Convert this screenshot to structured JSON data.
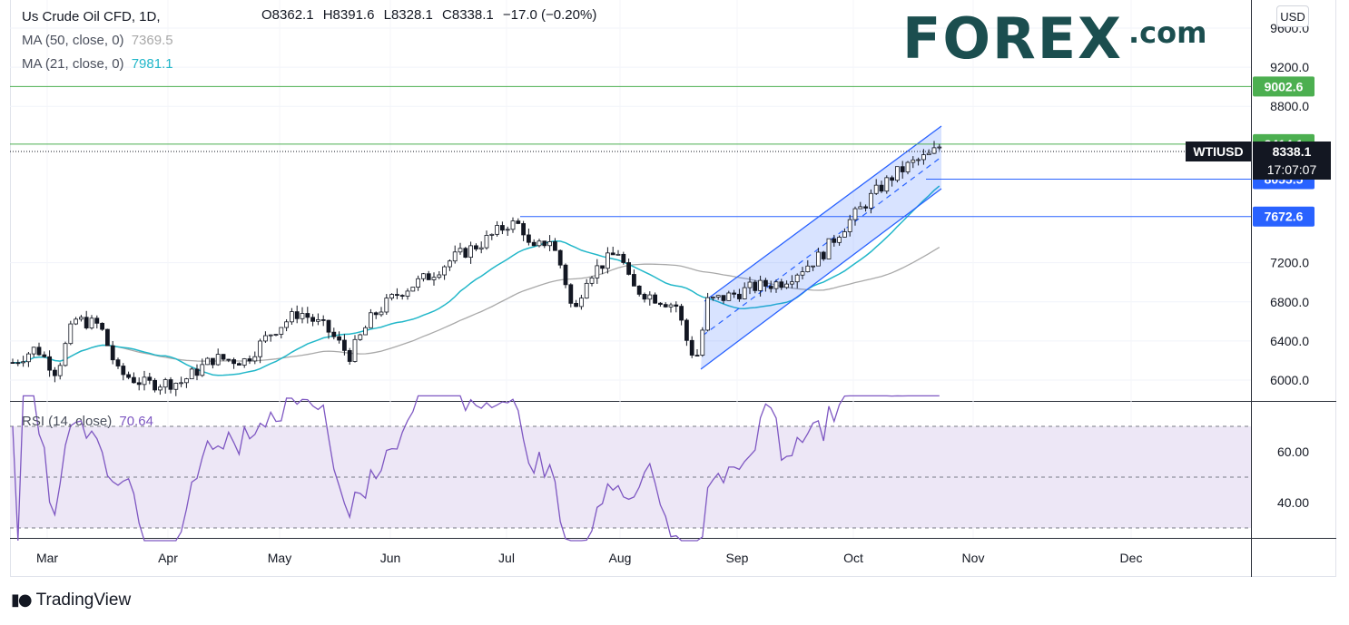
{
  "header": {
    "symbol_line": "Us Crude Oil CFD, 1D,",
    "ohlc": {
      "open": "O8362.1",
      "high": "H8391.6",
      "low": "L8328.1",
      "close": "C8338.1",
      "change": "−17.0 (−0.20%)"
    },
    "ma50": {
      "label": "MA (50, close, 0)",
      "value": "7369.5",
      "color": "#a9a9a9"
    },
    "ma21": {
      "label": "MA (21, close, 0)",
      "value": "7981.1",
      "color": "#22b7c9"
    },
    "currency_button": "USD"
  },
  "brand": {
    "logo_word": "FOREX",
    "logo_suffix": ".com",
    "platform": "TradingView"
  },
  "rsi": {
    "label": "RSI (14, close)",
    "value": "70.64"
  },
  "chart_data": {
    "type": "candlestick",
    "price_axis": {
      "ticks": [
        "9600.0",
        "9200.0",
        "8800.0",
        "7200.0",
        "6800.0",
        "6400.0",
        "6000.0"
      ],
      "ylim": [
        5770,
        9770
      ]
    },
    "rsi_axis": {
      "ticks": [
        "60.00",
        "40.00"
      ],
      "ylim": [
        20,
        85
      ],
      "bands": [
        30,
        50,
        70
      ]
    },
    "x_axis": {
      "ticks": [
        "Mar",
        "Apr",
        "May",
        "Jun",
        "Jul",
        "Aug",
        "Sep",
        "Oct",
        "Nov",
        "Dec"
      ]
    },
    "horizontal_levels": [
      {
        "value": 9002.6,
        "label": "9002.6",
        "color": "#4caf50",
        "style": "solid"
      },
      {
        "value": 8414.1,
        "label": "8414.1",
        "color": "#4caf50",
        "style": "solid"
      },
      {
        "value": 8055.5,
        "label": "8055.5",
        "color": "#2962ff",
        "style": "solid"
      },
      {
        "value": 7672.6,
        "label": "7672.6",
        "color": "#2962ff",
        "style": "solid"
      }
    ],
    "current_price": {
      "symbol": "WTIUSD",
      "value": "8338.1",
      "countdown": "17:07:07"
    },
    "channel_color": "#2962ff",
    "up_color": "#ffffff",
    "down_color": "#131722",
    "rsi_color": "#7e57c2",
    "rsi_fill": "#ede7f6"
  }
}
